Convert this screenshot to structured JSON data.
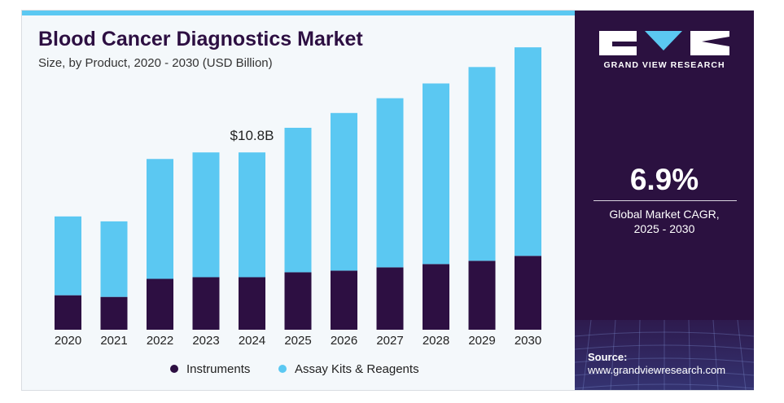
{
  "header": {
    "title": "Blood Cancer Diagnostics Market",
    "subtitle": "Size, by Product, 2020 - 2030 (USD Billion)"
  },
  "brand": {
    "name": "GRAND VIEW RESEARCH"
  },
  "stat": {
    "value": "6.9%",
    "label": "Global Market CAGR,",
    "period": "2025 - 2030"
  },
  "source": {
    "label": "Source:",
    "url": "www.grandviewresearch.com"
  },
  "colors": {
    "instruments": "#2d0f42",
    "assay_kits": "#5bc8f2",
    "panel": "#2b1140",
    "background": "#f4f8fb"
  },
  "chart_data": {
    "type": "bar",
    "stacked": true,
    "categories": [
      "2020",
      "2021",
      "2022",
      "2023",
      "2024",
      "2025",
      "2026",
      "2027",
      "2028",
      "2029",
      "2030"
    ],
    "series": [
      {
        "name": "Instruments",
        "values": [
          2.1,
          2.0,
          3.1,
          3.2,
          3.2,
          3.5,
          3.6,
          3.8,
          4.0,
          4.2,
          4.5
        ]
      },
      {
        "name": "Assay Kits & Reagents",
        "values": [
          4.8,
          4.6,
          7.3,
          7.6,
          7.6,
          8.8,
          9.6,
          10.3,
          11.0,
          11.8,
          12.7
        ]
      }
    ],
    "annotations": [
      {
        "category": "2024",
        "text": "$10.8B"
      }
    ],
    "ylim": [
      0,
      18
    ],
    "legend": "bottom-center",
    "grid": false
  }
}
